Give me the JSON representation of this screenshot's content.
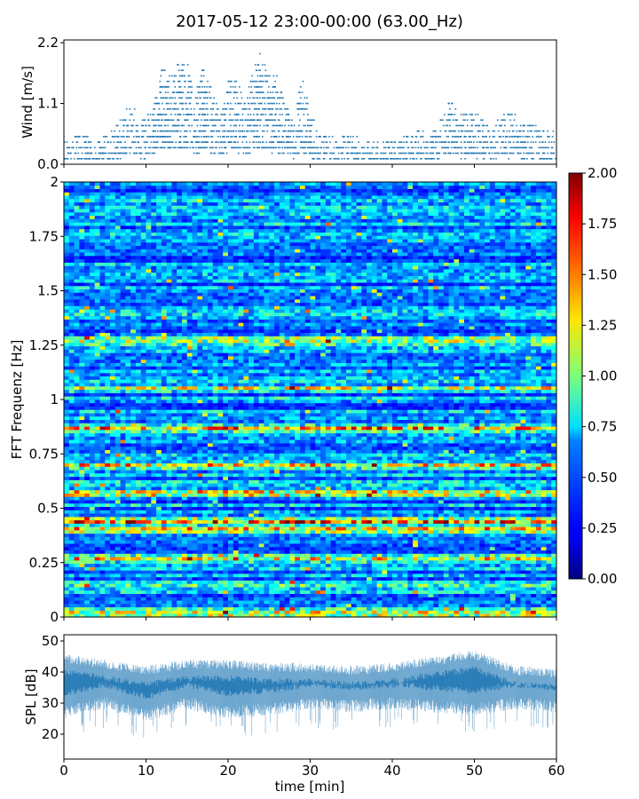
{
  "title": "2017-05-12 23:00-00:00 (63.00_Hz)",
  "chart_data": [
    {
      "type": "scatter",
      "name": "wind",
      "ylabel": "Wind [m/s]",
      "xlim": [
        0,
        60
      ],
      "ylim": [
        0,
        2.25
      ],
      "yticks": [
        "0.0",
        "1.1",
        "2.2"
      ],
      "ytick_values": [
        0,
        1.1,
        2.2
      ],
      "color": "#1f77b4",
      "envelope_x": [
        0,
        2,
        4,
        6,
        8,
        10,
        11,
        12,
        13,
        14,
        15,
        16,
        17,
        18,
        19,
        20,
        21,
        22,
        23,
        24,
        25,
        26,
        27,
        28,
        29,
        30,
        31,
        32,
        34,
        36,
        38,
        40,
        42,
        44,
        46,
        47,
        48,
        50,
        52,
        54,
        56,
        58,
        60
      ],
      "envelope_y": [
        0.5,
        0.6,
        0.45,
        0.65,
        1.1,
        0.8,
        1.3,
        1.8,
        1.6,
        1.9,
        1.9,
        1.3,
        1.8,
        1.4,
        0.9,
        1.5,
        1.6,
        1.1,
        1.65,
        2.2,
        1.6,
        1.6,
        1.1,
        0.8,
        1.6,
        1.0,
        0.6,
        0.6,
        0.5,
        0.5,
        0.45,
        0.45,
        0.55,
        0.65,
        0.85,
        1.2,
        0.95,
        1.0,
        0.7,
        0.95,
        0.85,
        0.65,
        0.6
      ]
    },
    {
      "type": "heatmap",
      "name": "spectrogram",
      "ylabel": "FFT Frequenz [Hz]",
      "xlim": [
        0,
        60
      ],
      "ylim": [
        0,
        2
      ],
      "yticks": [
        "0",
        "0.25",
        "0.5",
        "0.75",
        "1",
        "1.25",
        "1.5",
        "1.75",
        "2"
      ],
      "ytick_values": [
        0,
        0.25,
        0.5,
        0.75,
        1,
        1.25,
        1.5,
        1.75,
        2
      ],
      "colormap": "jet",
      "clim": [
        0,
        2
      ],
      "colorbar_ticks": [
        "0.00",
        "0.25",
        "0.50",
        "0.75",
        "1.00",
        "1.25",
        "1.50",
        "1.75",
        "2.00"
      ],
      "bands": [
        {
          "f": 0.44,
          "level": 1.6
        },
        {
          "f": 0.4,
          "level": 1.1
        },
        {
          "f": 0.57,
          "level": 1.2
        },
        {
          "f": 0.7,
          "level": 0.9
        },
        {
          "f": 0.87,
          "level": 1.3
        },
        {
          "f": 1.05,
          "level": 0.8
        },
        {
          "f": 1.27,
          "level": 0.9
        },
        {
          "f": 1.4,
          "level": 0.7
        },
        {
          "f": 0.27,
          "level": 0.8
        },
        {
          "f": 0.14,
          "level": 0.7
        },
        {
          "f": 0.02,
          "level": 1.1
        }
      ]
    },
    {
      "type": "area",
      "name": "spl",
      "ylabel": "SPL [dB]",
      "xlabel": "time [min]",
      "xlim": [
        0,
        60
      ],
      "ylim": [
        12,
        52
      ],
      "yticks": [
        "20",
        "30",
        "40",
        "50"
      ],
      "ytick_values": [
        20,
        30,
        40,
        50
      ],
      "xticks": [
        "0",
        "10",
        "20",
        "30",
        "40",
        "50",
        "60"
      ],
      "xtick_values": [
        0,
        10,
        20,
        30,
        40,
        50,
        60
      ],
      "color": "#1f77b4",
      "x": [
        0,
        5,
        10,
        15,
        20,
        25,
        30,
        35,
        40,
        45,
        50,
        55,
        60
      ],
      "upper": [
        46,
        44,
        42,
        44,
        44,
        43,
        43,
        42,
        43,
        45,
        47,
        42,
        41
      ],
      "lower": [
        25,
        28,
        24,
        28,
        25,
        26,
        28,
        27,
        28,
        27,
        26,
        28,
        27
      ]
    }
  ]
}
